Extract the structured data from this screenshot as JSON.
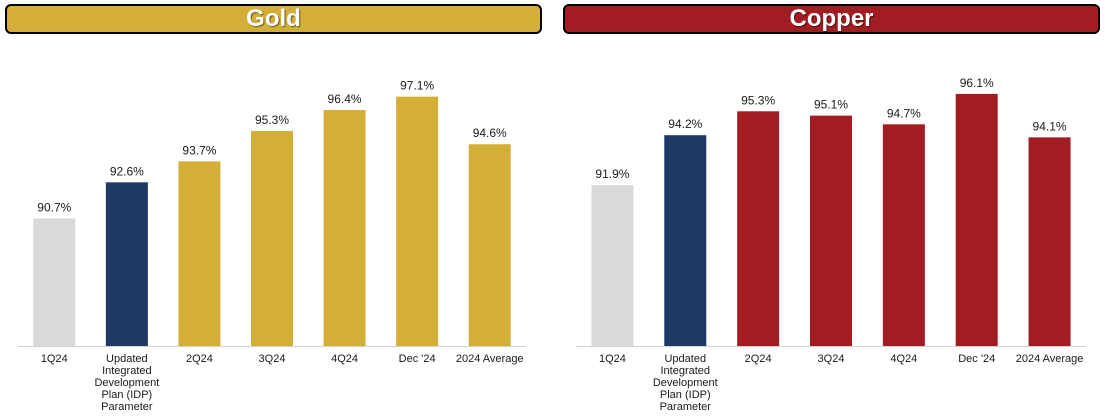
{
  "chart_data": [
    {
      "type": "bar",
      "title": "Gold",
      "title_color": "#D4AF37",
      "categories": [
        "1Q24",
        "Updated Integrated Development Plan (IDP) Parameter",
        "2Q24",
        "3Q24",
        "4Q24",
        "Dec '24",
        "2024 Average"
      ],
      "category_lines": [
        [
          "1Q24"
        ],
        [
          "Updated",
          "Integrated",
          "Development",
          "Plan (IDP)",
          "Parameter"
        ],
        [
          "2Q24"
        ],
        [
          "3Q24"
        ],
        [
          "4Q24"
        ],
        [
          "Dec '24"
        ],
        [
          "2024 Average"
        ]
      ],
      "values": [
        90.7,
        92.6,
        93.7,
        95.3,
        96.4,
        97.1,
        94.6
      ],
      "value_labels": [
        "90.7%",
        "92.6%",
        "93.7%",
        "95.3%",
        "96.4%",
        "97.1%",
        "94.6%"
      ],
      "bar_colors": [
        "#D9D9D9",
        "#1F3864",
        "#D4AF37",
        "#D4AF37",
        "#D4AF37",
        "#D4AF37",
        "#D4AF37"
      ],
      "ylim": [
        84,
        98.5
      ],
      "grid": false
    },
    {
      "type": "bar",
      "title": "Copper",
      "title_color": "#A11D21",
      "categories": [
        "1Q24",
        "Updated Integrated Development Plan (IDP) Parameter",
        "2Q24",
        "3Q24",
        "4Q24",
        "Dec '24",
        "2024 Average"
      ],
      "category_lines": [
        [
          "1Q24"
        ],
        [
          "Updated",
          "Integrated",
          "Development",
          "Plan (IDP)",
          "Parameter"
        ],
        [
          "2Q24"
        ],
        [
          "3Q24"
        ],
        [
          "4Q24"
        ],
        [
          "Dec '24"
        ],
        [
          "2024 Average"
        ]
      ],
      "values": [
        91.9,
        94.2,
        95.3,
        95.1,
        94.7,
        96.1,
        94.1
      ],
      "value_labels": [
        "91.9%",
        "94.2%",
        "95.3%",
        "95.1%",
        "94.7%",
        "96.1%",
        "94.1%"
      ],
      "bar_colors": [
        "#D9D9D9",
        "#1F3864",
        "#A11D21",
        "#A11D21",
        "#A11D21",
        "#A11D21",
        "#A11D21"
      ],
      "ylim": [
        84.5,
        97.2
      ],
      "grid": false
    }
  ]
}
